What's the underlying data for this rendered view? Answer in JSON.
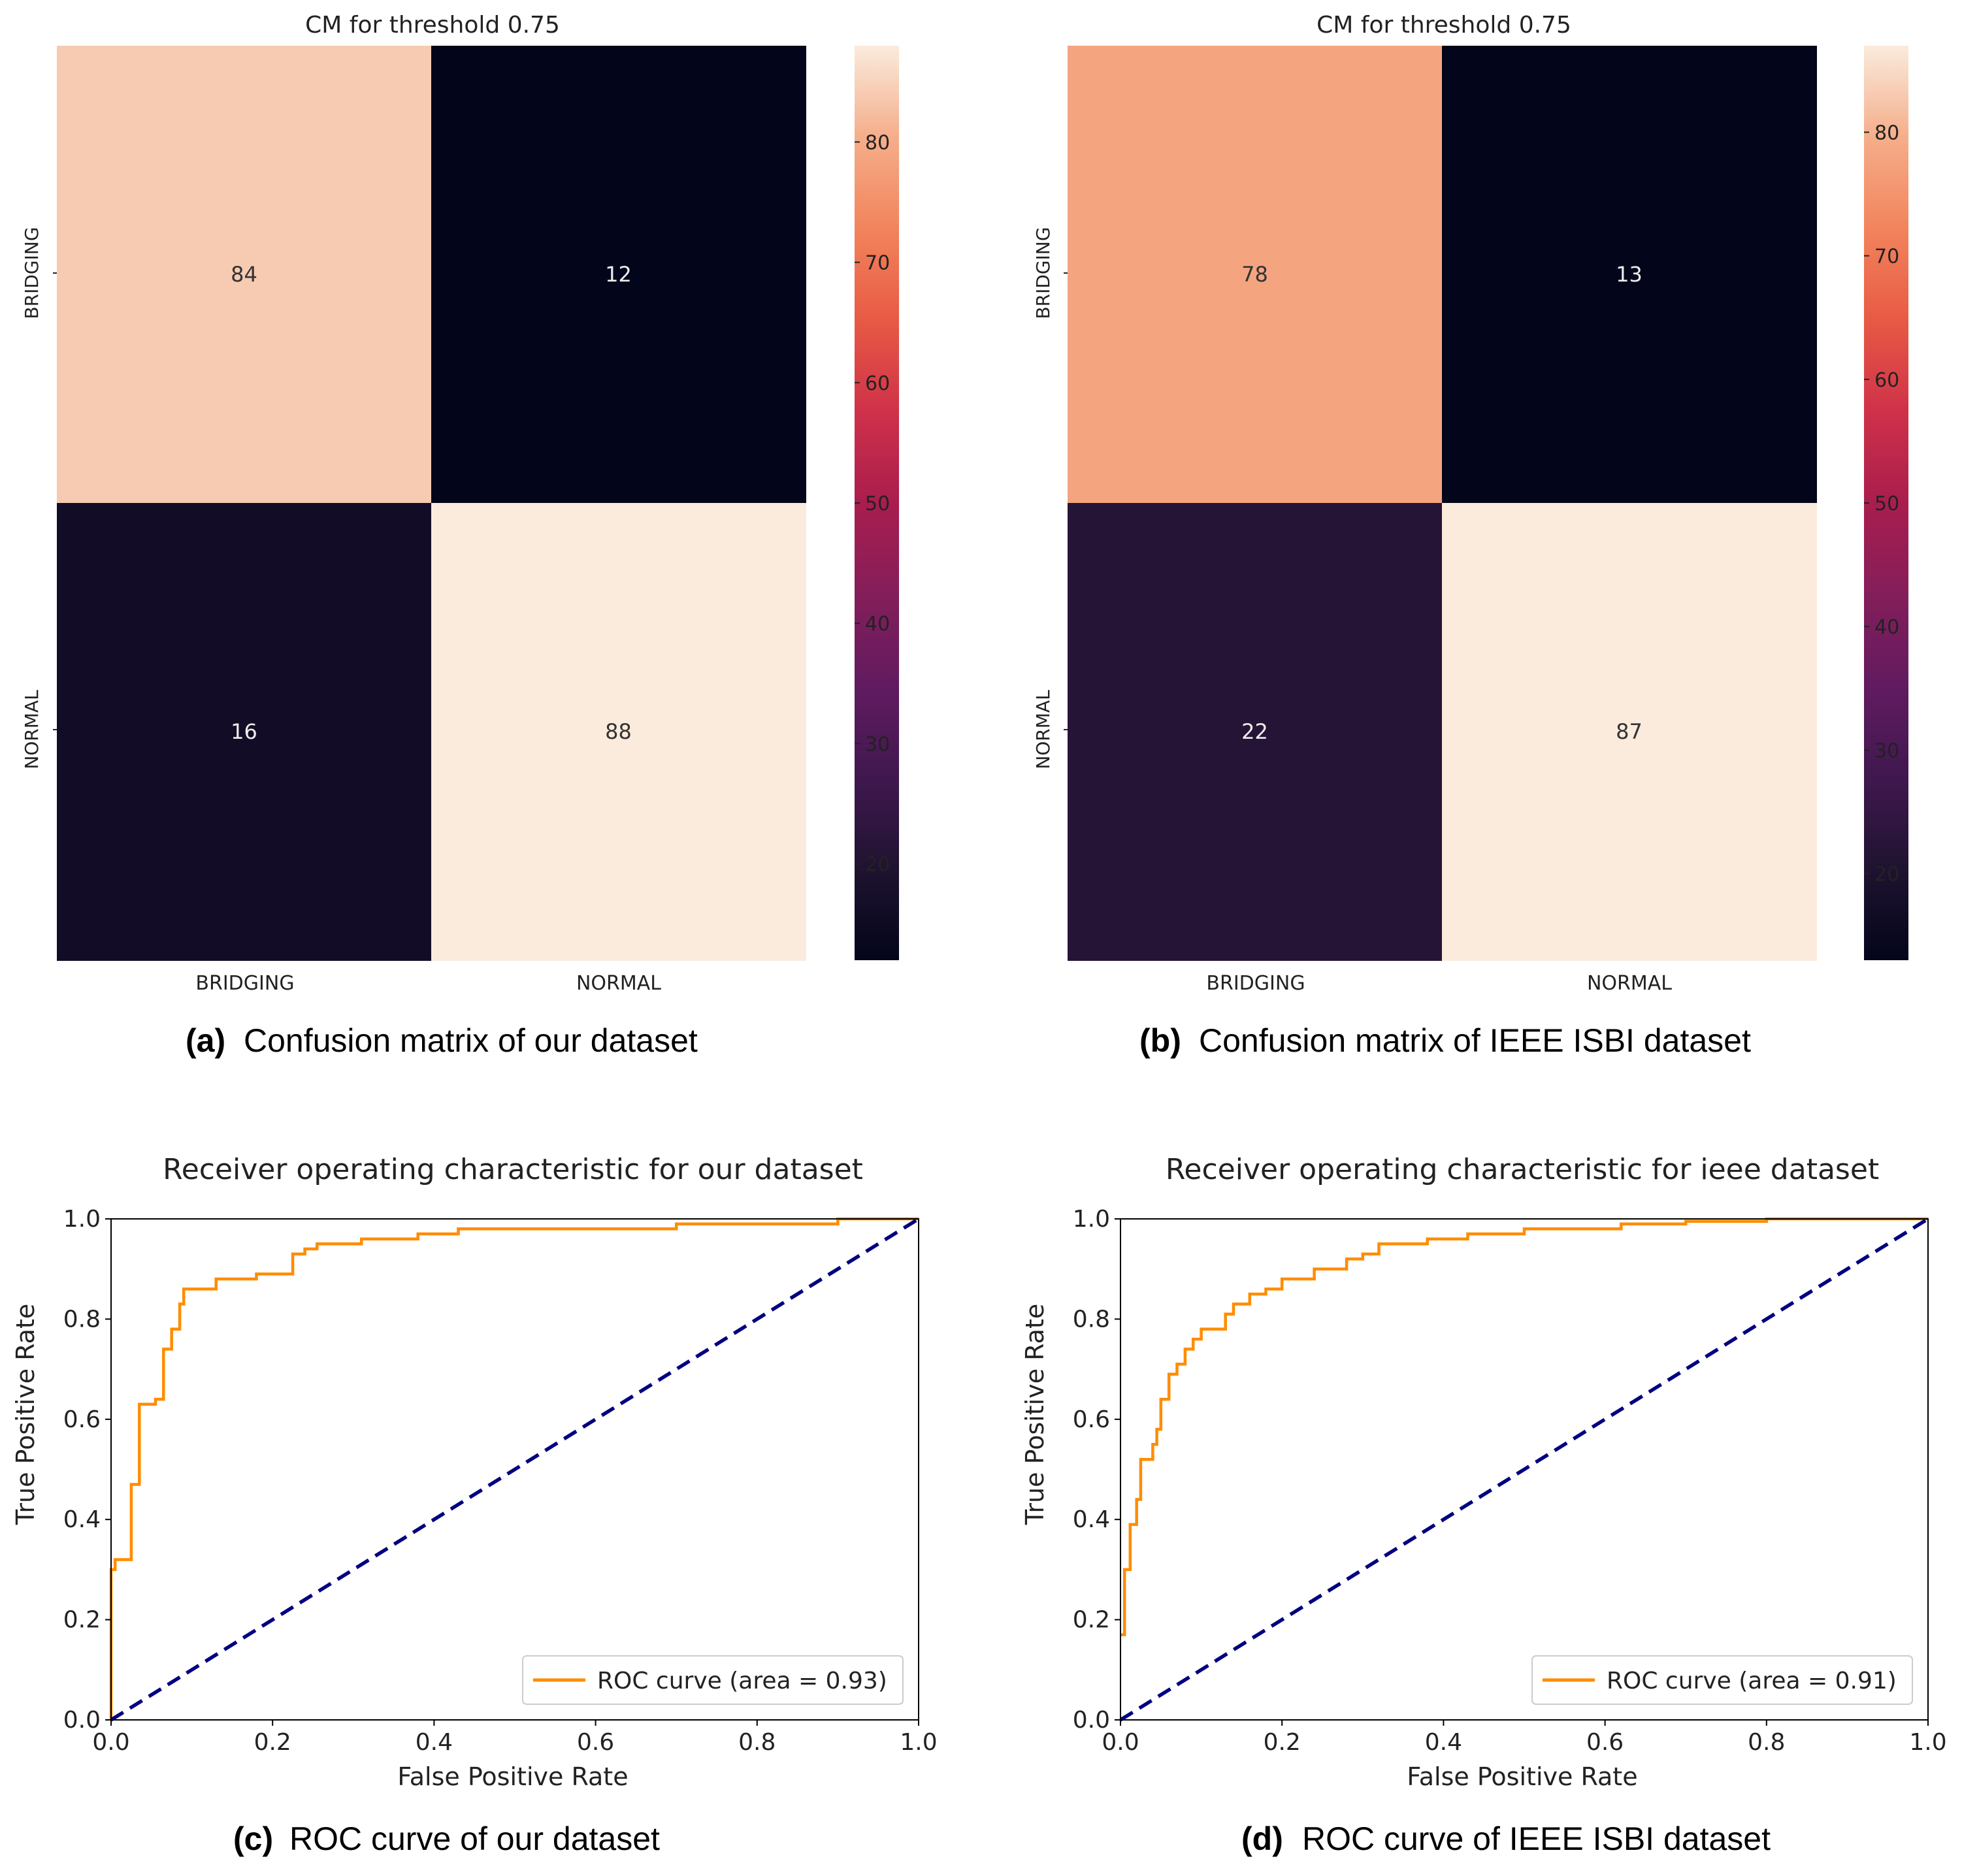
{
  "chart_data": [
    {
      "type": "heatmap",
      "panel": "a",
      "title": "CM for threshold 0.75",
      "row_labels": [
        "BRIDGING",
        "NORMAL"
      ],
      "col_labels": [
        "BRIDGING",
        "NORMAL"
      ],
      "matrix": [
        [
          84,
          12
        ],
        [
          16,
          88
        ]
      ],
      "color_range": [
        12,
        88
      ],
      "colorbar_ticks": [
        20,
        30,
        40,
        50,
        60,
        70,
        80
      ],
      "caption_prefix": "(a)",
      "caption": "Confusion matrix of our dataset"
    },
    {
      "type": "heatmap",
      "panel": "b",
      "title": "CM for threshold 0.75",
      "row_labels": [
        "BRIDGING",
        "NORMAL"
      ],
      "col_labels": [
        "BRIDGING",
        "NORMAL"
      ],
      "matrix": [
        [
          78,
          13
        ],
        [
          22,
          87
        ]
      ],
      "color_range": [
        13,
        87
      ],
      "colorbar_ticks": [
        20,
        30,
        40,
        50,
        60,
        70,
        80
      ],
      "caption_prefix": "(b)",
      "caption": "Confusion matrix of IEEE ISBI dataset"
    },
    {
      "type": "line",
      "panel": "c",
      "title": "Receiver operating characteristic for our dataset",
      "xlabel": "False Positive Rate",
      "ylabel": "True Positive Rate",
      "xlim": [
        0,
        1
      ],
      "ylim": [
        0,
        1
      ],
      "xticks": [
        "0.0",
        "0.2",
        "0.4",
        "0.6",
        "0.8",
        "1.0"
      ],
      "yticks": [
        "0.0",
        "0.2",
        "0.4",
        "0.6",
        "0.8",
        "1.0"
      ],
      "legend": "ROC curve (area = 0.93)",
      "legend_loc": "lower right",
      "series": [
        {
          "name": "ROC curve (area = 0.93)",
          "color": "#ff8c00",
          "x": [
            0,
            0,
            0.005,
            0.005,
            0.025,
            0.025,
            0.035,
            0.035,
            0.055,
            0.055,
            0.065,
            0.065,
            0.075,
            0.075,
            0.085,
            0.085,
            0.09,
            0.09,
            0.13,
            0.13,
            0.18,
            0.18,
            0.225,
            0.225,
            0.24,
            0.24,
            0.255,
            0.255,
            0.31,
            0.31,
            0.38,
            0.38,
            0.43,
            0.43,
            0.7,
            0.7,
            0.9,
            0.9,
            1.0
          ],
          "y": [
            0,
            0.3,
            0.3,
            0.32,
            0.32,
            0.47,
            0.47,
            0.63,
            0.63,
            0.64,
            0.64,
            0.74,
            0.74,
            0.78,
            0.78,
            0.83,
            0.83,
            0.86,
            0.86,
            0.88,
            0.88,
            0.89,
            0.89,
            0.93,
            0.93,
            0.94,
            0.94,
            0.95,
            0.95,
            0.96,
            0.96,
            0.97,
            0.97,
            0.98,
            0.98,
            0.99,
            0.99,
            1.0,
            1.0
          ]
        },
        {
          "name": "chance",
          "color": "#000080",
          "dashed": true,
          "x": [
            0,
            1
          ],
          "y": [
            0,
            1
          ]
        }
      ],
      "caption_prefix": "(c)",
      "caption": "ROC curve of our dataset"
    },
    {
      "type": "line",
      "panel": "d",
      "title": "Receiver operating characteristic for ieee dataset",
      "xlabel": "False Positive Rate",
      "ylabel": "True Positive Rate",
      "xlim": [
        0,
        1
      ],
      "ylim": [
        0,
        1
      ],
      "xticks": [
        "0.0",
        "0.2",
        "0.4",
        "0.6",
        "0.8",
        "1.0"
      ],
      "yticks": [
        "0.0",
        "0.2",
        "0.4",
        "0.6",
        "0.8",
        "1.0"
      ],
      "legend": "ROC curve (area = 0.91)",
      "legend_loc": "lower right",
      "series": [
        {
          "name": "ROC curve (area = 0.91)",
          "color": "#ff8c00",
          "x": [
            0,
            0.005,
            0.005,
            0.012,
            0.012,
            0.02,
            0.02,
            0.025,
            0.025,
            0.04,
            0.04,
            0.045,
            0.045,
            0.05,
            0.05,
            0.06,
            0.06,
            0.07,
            0.07,
            0.08,
            0.08,
            0.09,
            0.09,
            0.1,
            0.1,
            0.13,
            0.13,
            0.14,
            0.14,
            0.16,
            0.16,
            0.18,
            0.18,
            0.2,
            0.2,
            0.24,
            0.24,
            0.28,
            0.28,
            0.3,
            0.3,
            0.32,
            0.32,
            0.38,
            0.38,
            0.43,
            0.43,
            0.5,
            0.5,
            0.62,
            0.62,
            0.7,
            0.7,
            0.8,
            0.8,
            1.0
          ],
          "y": [
            0.17,
            0.17,
            0.3,
            0.3,
            0.39,
            0.39,
            0.44,
            0.44,
            0.52,
            0.52,
            0.55,
            0.55,
            0.58,
            0.58,
            0.64,
            0.64,
            0.69,
            0.69,
            0.71,
            0.71,
            0.74,
            0.74,
            0.76,
            0.76,
            0.78,
            0.78,
            0.81,
            0.81,
            0.83,
            0.83,
            0.85,
            0.85,
            0.86,
            0.86,
            0.88,
            0.88,
            0.9,
            0.9,
            0.92,
            0.92,
            0.93,
            0.93,
            0.95,
            0.95,
            0.96,
            0.96,
            0.97,
            0.97,
            0.98,
            0.98,
            0.99,
            0.99,
            0.995,
            0.995,
            1.0,
            1.0
          ]
        },
        {
          "name": "chance",
          "color": "#000080",
          "dashed": true,
          "x": [
            0,
            1
          ],
          "y": [
            0,
            1
          ]
        }
      ],
      "caption_prefix": "(d)",
      "caption": "ROC curve of IEEE ISBI dataset"
    }
  ]
}
